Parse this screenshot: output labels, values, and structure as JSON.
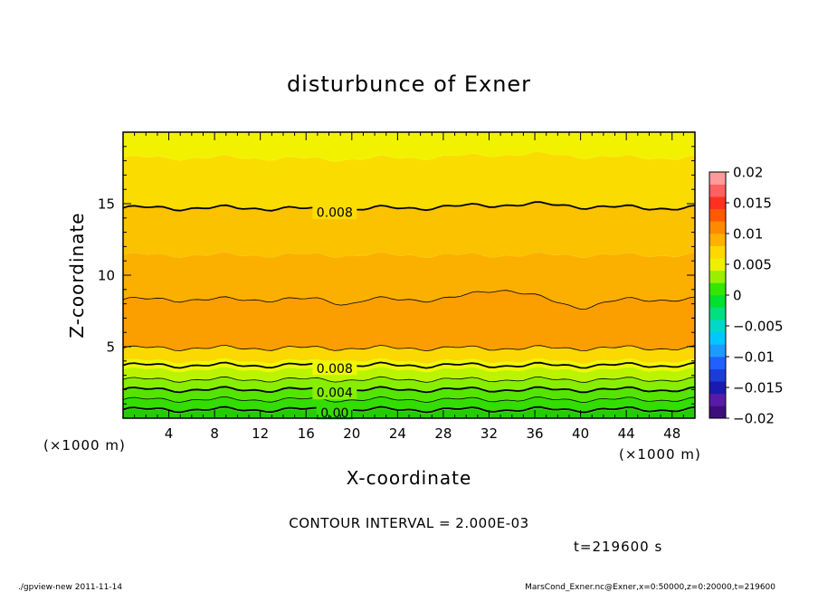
{
  "chart_data": {
    "type": "contour",
    "title": "disturbunce of Exner",
    "xlabel": "X-coordinate",
    "ylabel": "Z-coordinate",
    "x_unit": "(×1000 m)",
    "z_unit": "(×1000 m)",
    "xlim": [
      0,
      50
    ],
    "zlim": [
      0,
      20
    ],
    "x_ticks": [
      4,
      8,
      12,
      16,
      20,
      24,
      28,
      32,
      36,
      40,
      44,
      48
    ],
    "z_ticks": [
      5,
      10,
      15
    ],
    "contour_interval_label": "CONTOUR INTERVAL = 2.000E-03",
    "time_label": "t=219600 s",
    "fill_bands": [
      {
        "z_from": 0.0,
        "z_to": 0.5,
        "color": "#22cc00"
      },
      {
        "z_from": 0.5,
        "z_to": 1.3,
        "color": "#33dd00"
      },
      {
        "z_from": 1.3,
        "z_to": 2.0,
        "color": "#55e400"
      },
      {
        "z_from": 2.0,
        "z_to": 2.7,
        "color": "#88ee00"
      },
      {
        "z_from": 2.7,
        "z_to": 3.4,
        "color": "#bbf400"
      },
      {
        "z_from": 3.4,
        "z_to": 4.0,
        "color": "#eef800"
      },
      {
        "z_from": 4.0,
        "z_to": 4.9,
        "color": "#fbd800"
      },
      {
        "z_from": 4.9,
        "z_to": 8.3,
        "color": "#fb9e00"
      },
      {
        "z_from": 8.3,
        "z_to": 11.4,
        "color": "#fbb000"
      },
      {
        "z_from": 11.4,
        "z_to": 14.7,
        "color": "#fbc200"
      },
      {
        "z_from": 14.7,
        "z_to": 18.2,
        "color": "#fbdc00"
      },
      {
        "z_from": 18.2,
        "z_to": 20.0,
        "color": "#f2f200"
      }
    ],
    "contours": [
      {
        "level": 0.0,
        "label": "0.00",
        "z": 0.6,
        "bold": true
      },
      {
        "level": 0.002,
        "label": "",
        "z": 1.3,
        "bold": false
      },
      {
        "level": 0.004,
        "label": "0.004",
        "z": 2.0,
        "bold": true
      },
      {
        "level": 0.006,
        "label": "",
        "z": 2.7,
        "bold": false
      },
      {
        "level": 0.008,
        "label": "0.008",
        "z": 3.7,
        "bold": true
      },
      {
        "level": 0.01,
        "label": "",
        "z": 4.9,
        "bold": false
      },
      {
        "level": 0.011,
        "label": "",
        "z": 8.3,
        "bold": false
      },
      {
        "level": 0.008,
        "label": "0.008",
        "z": 14.7,
        "bold": true
      }
    ],
    "colorbar": {
      "range": [
        -0.02,
        0.02
      ],
      "tick_labels": [
        "0.02",
        "0.015",
        "0.01",
        "0.005",
        "0",
        "−0.005",
        "−0.01",
        "−0.015",
        "−0.02"
      ],
      "colors": [
        "#3d0d7a",
        "#5a1aa8",
        "#1a1ab0",
        "#1a3dd8",
        "#2060ff",
        "#1a9cff",
        "#00c8ff",
        "#00d8c8",
        "#00e080",
        "#00e030",
        "#33e600",
        "#9aee00",
        "#eef000",
        "#ffd800",
        "#ffb000",
        "#ff8a00",
        "#ff5a00",
        "#ff3020",
        "#ff6060",
        "#ff9a9a"
      ]
    }
  },
  "footer": {
    "left": "./gpview-new   2011-11-14",
    "right": "MarsCond_Exner.nc@Exner,x=0:50000,z=0:20000,t=219600"
  }
}
